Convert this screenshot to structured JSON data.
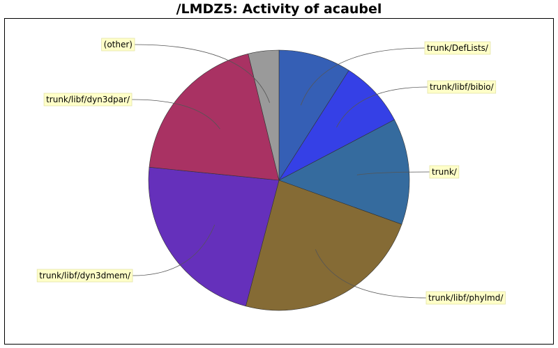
{
  "chart_data": {
    "type": "pie",
    "title": "/LMDZ5: Activity of acaubel",
    "start_angle_deg": 0,
    "direction": "clockwise",
    "slices": [
      {
        "label": "trunk/DefLists/",
        "value": 9.0,
        "color": "#355fb5"
      },
      {
        "label": "trunk/libf/bibio/",
        "value": 8.3,
        "color": "#3540e6"
      },
      {
        "label": "trunk/",
        "value": 13.2,
        "color": "#356b9e"
      },
      {
        "label": "trunk/libf/phylmd/",
        "value": 23.6,
        "color": "#856b35"
      },
      {
        "label": "trunk/libf/dyn3dmem/",
        "value": 22.5,
        "color": "#6530bb"
      },
      {
        "label": "trunk/libf/dyn3dpar/",
        "value": 19.6,
        "color": "#a93263"
      },
      {
        "label": "(other)",
        "value": 3.8,
        "color": "#9a9a9a"
      }
    ]
  }
}
